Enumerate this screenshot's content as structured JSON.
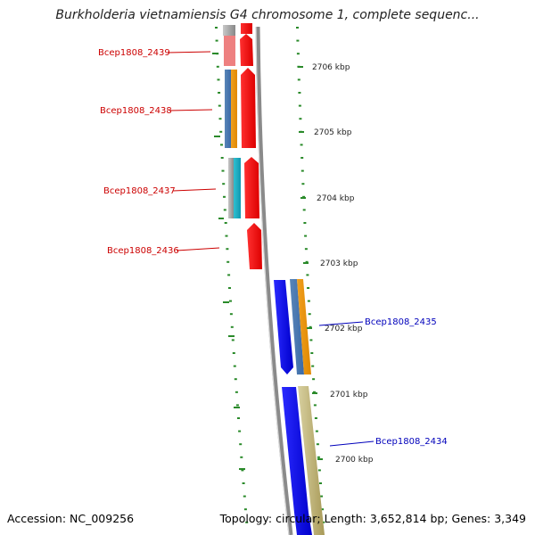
{
  "title": "Burkholderia vietnamiensis G4 chromosome 1, complete sequenc...",
  "footer": {
    "accession": "Accession: NC_009256",
    "summary": "Topology: circular; Length: 3,652,814 bp; Genes: 3,349"
  },
  "colors": {
    "forward_gene": "#ee1111",
    "forward_label": "#cc0000",
    "reverse_gene": "#1111ee",
    "reverse_label": "#0000bb",
    "tick": "#2a8a2a",
    "backbone": "#8a8a8a"
  },
  "scale_ticks": [
    {
      "label": "2706 kbp"
    },
    {
      "label": "2705 kbp"
    },
    {
      "label": "2704 kbp"
    },
    {
      "label": "2703 kbp"
    },
    {
      "label": "2702 kbp"
    },
    {
      "label": "2701 kbp"
    },
    {
      "label": "2700 kbp"
    }
  ],
  "genes": [
    {
      "label": "Bcep1808_2439",
      "strand": "forward"
    },
    {
      "label": "Bcep1808_2438",
      "strand": "forward"
    },
    {
      "label": "Bcep1808_2437",
      "strand": "forward"
    },
    {
      "label": "Bcep1808_2436",
      "strand": "forward"
    },
    {
      "label": "Bcep1808_2435",
      "strand": "reverse"
    },
    {
      "label": "Bcep1808_2434",
      "strand": "reverse"
    }
  ]
}
